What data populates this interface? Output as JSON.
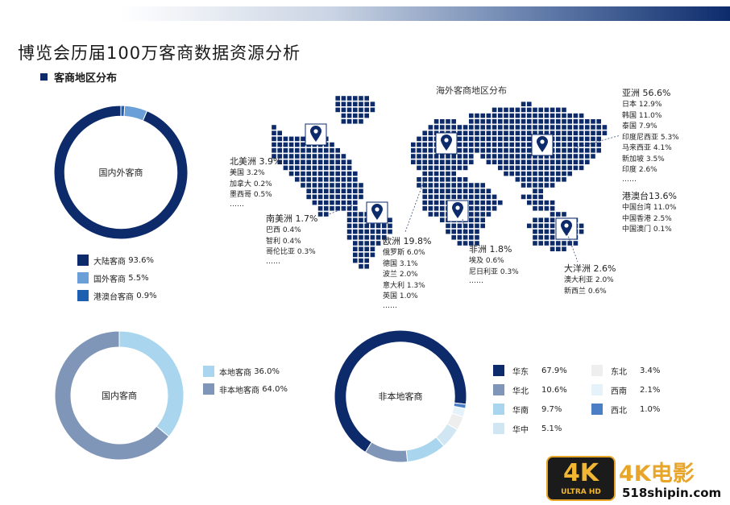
{
  "title": "博览会历届100万客商数据资源分析",
  "section_title": "客商地区分布",
  "map_title": "海外客商地区分布",
  "chart_data": [
    {
      "type": "pie",
      "center_label": "国内外客商",
      "categories": [
        "大陆客商",
        "国外客商",
        "港澳台客商"
      ],
      "values": [
        93.6,
        5.5,
        0.9
      ],
      "labels": [
        "93.6%",
        "5.5%",
        "0.9%"
      ],
      "colors": [
        "#0d2b6b",
        "#6a9fd8",
        "#1f5fb0"
      ]
    },
    {
      "type": "pie",
      "center_label": "国内客商",
      "categories": [
        "本地客商",
        "非本地客商"
      ],
      "values": [
        36.0,
        64.0
      ],
      "labels": [
        "36.0%",
        "64.0%"
      ],
      "colors": [
        "#a9d6ee",
        "#8096b8"
      ]
    },
    {
      "type": "pie",
      "center_label": "非本地客商",
      "categories": [
        "华东",
        "华北",
        "华南",
        "华中",
        "东北",
        "西南",
        "西北"
      ],
      "values": [
        67.9,
        10.6,
        9.7,
        5.1,
        3.4,
        2.1,
        1.0
      ],
      "labels": [
        "67.9%",
        "10.6%",
        "9.7%",
        "5.1%",
        "3.4%",
        "2.1%",
        "1.0%"
      ],
      "colors": [
        "#0d2b6b",
        "#8096b8",
        "#a9d6ee",
        "#d0e6f3",
        "#eeeeee",
        "#e6f2fa",
        "#4a7fc6"
      ]
    }
  ],
  "regions": [
    {
      "name": "北美洲",
      "value": "3.9%",
      "items": [
        "美国 3.2%",
        "加拿大 0.2%",
        "墨西哥 0.5%"
      ],
      "more": "……"
    },
    {
      "name": "南美洲",
      "value": "1.7%",
      "items": [
        "巴西 0.4%",
        "智利 0.4%",
        "哥伦比亚 0.3%"
      ],
      "more": "……"
    },
    {
      "name": "欧洲",
      "value": "19.8%",
      "items": [
        "俄罗斯 6.0%",
        "德国 3.1%",
        "波兰 2.0%",
        "意大利 1.3%",
        "英国 1.0%"
      ],
      "more": "……"
    },
    {
      "name": "非洲",
      "value": "1.8%",
      "items": [
        "埃及 0.6%",
        "尼日利亚 0.3%"
      ],
      "more": "……"
    },
    {
      "name": "大洋洲",
      "value": "2.6%",
      "items": [
        "澳大利亚 2.0%",
        "新西兰 0.6%"
      ],
      "more": ""
    },
    {
      "name": "亚洲",
      "value": "56.6%",
      "items": [
        "日本 12.9%",
        "韩国 11.0%",
        "泰国 7.9%",
        "印度尼西亚 5.3%",
        "马来西亚 4.1%",
        "新加坡 3.5%",
        "印度 2.6%"
      ],
      "more": "……"
    },
    {
      "name": "港澳台",
      "value": "13.6%",
      "items": [
        "中国台湾 11.0%",
        "中国香港 2.5%",
        "中国澳门 0.1%"
      ],
      "more": ""
    }
  ],
  "watermark": {
    "badge_big": "4K",
    "badge_small": "ULTRA HD",
    "brand": "4K电影",
    "site": "518shipin.com"
  }
}
